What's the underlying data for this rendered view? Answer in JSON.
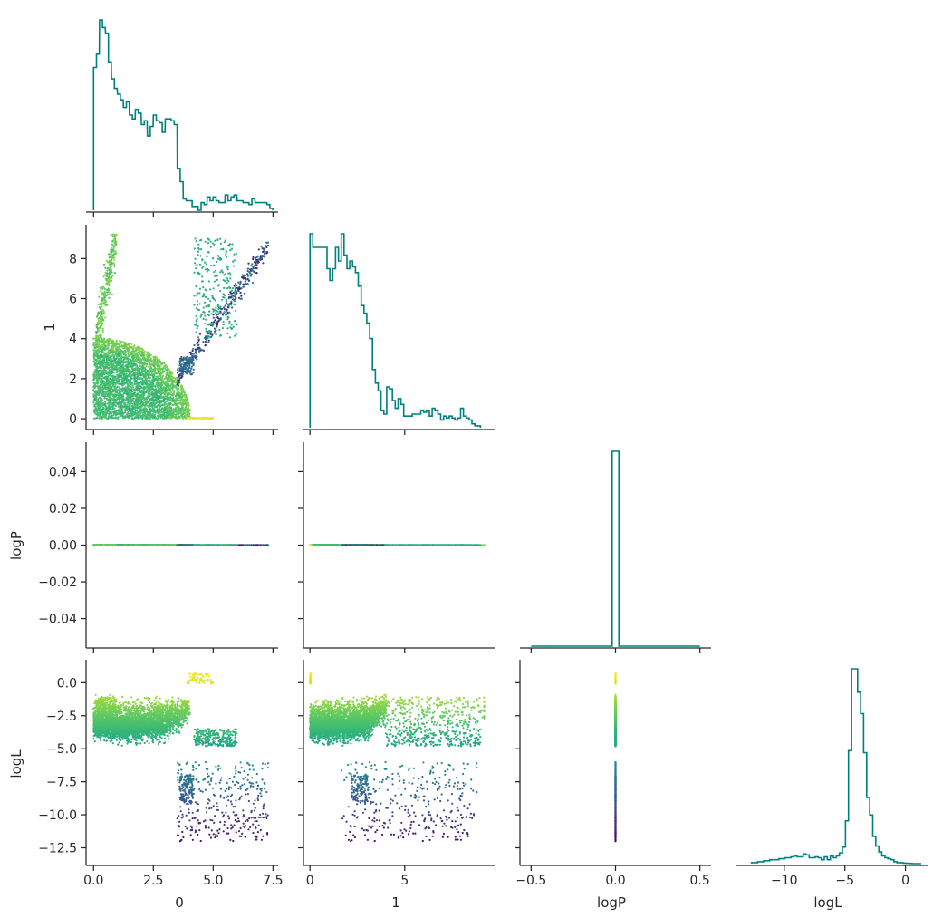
{
  "chart_data": {
    "type": "scatter",
    "grid": false,
    "variables": [
      "0",
      "1",
      "logP",
      "logL"
    ],
    "axis_labels": {
      "x_bottom": [
        "0",
        "1",
        "logP",
        "logL"
      ],
      "y_left": [
        "",
        "1",
        "logP",
        "logL"
      ]
    },
    "ticks": {
      "x0": {
        "values": [
          0,
          2.5,
          5,
          7.5
        ],
        "labels": [
          "0.0",
          "2.5",
          "5.0",
          "7.5"
        ],
        "lim": [
          -0.2,
          7.6
        ]
      },
      "x1": {
        "values": [
          0,
          5
        ],
        "labels": [
          "0",
          "5"
        ],
        "lim": [
          -0.2,
          9.6
        ]
      },
      "xlogP": {
        "values": [
          -0.5,
          0,
          0.5
        ],
        "labels": [
          "−0.5",
          "0.0",
          "0.5"
        ],
        "lim": [
          -0.55,
          0.55
        ]
      },
      "xlogL": {
        "values": [
          -10,
          -5,
          0
        ],
        "labels": [
          "−10",
          "−5",
          "0"
        ],
        "lim": [
          -13.8,
          1.6
        ]
      },
      "y1": {
        "values": [
          0,
          2,
          4,
          6,
          8
        ],
        "labels": [
          "0",
          "2",
          "4",
          "6",
          "8"
        ],
        "lim": [
          -0.45,
          9.6
        ]
      },
      "ylogP": {
        "values": [
          -0.04,
          -0.02,
          0,
          0.02,
          0.04
        ],
        "labels": [
          "−0.04",
          "−0.02",
          "0.00",
          "0.02",
          "0.04"
        ],
        "lim": [
          -0.055,
          0.055
        ]
      },
      "ylogL": {
        "values": [
          -12.5,
          -10,
          -7.5,
          -5,
          -2.5,
          0
        ],
        "labels": [
          "−12.5",
          "−10.0",
          "−7.5",
          "−5.0",
          "−2.5",
          "0.0"
        ],
        "lim": [
          -13.7,
          1.6
        ]
      }
    },
    "color_map": "viridis (points colored by logL)",
    "colors": {
      "hist": "#008080",
      "text": "#262626"
    },
    "histograms": {
      "0": {
        "x": [
          0.0,
          0.12,
          0.25,
          0.37,
          0.5,
          0.62,
          0.75,
          0.87,
          1.0,
          1.12,
          1.25,
          1.37,
          1.5,
          1.62,
          1.75,
          1.87,
          2.0,
          2.12,
          2.25,
          2.37,
          2.5,
          2.62,
          2.75,
          2.87,
          3.0,
          3.12,
          3.25,
          3.37,
          3.5,
          3.62,
          3.75,
          3.87,
          4.0,
          4.12,
          4.25,
          4.37,
          4.5,
          4.62,
          4.75,
          4.87,
          5.0,
          5.12,
          5.25,
          5.37,
          5.5,
          5.62,
          5.75,
          5.87,
          6.0,
          6.12,
          6.25,
          6.37,
          6.5,
          6.62,
          6.75,
          6.87,
          7.0,
          7.12,
          7.25,
          7.37
        ],
        "values": [
          0.75,
          0.82,
          1.0,
          0.96,
          0.93,
          0.78,
          0.69,
          0.64,
          0.61,
          0.58,
          0.54,
          0.57,
          0.5,
          0.48,
          0.53,
          0.51,
          0.45,
          0.47,
          0.39,
          0.44,
          0.5,
          0.47,
          0.46,
          0.41,
          0.48,
          0.48,
          0.47,
          0.45,
          0.22,
          0.15,
          0.06,
          0.05,
          0.05,
          0.02,
          0.02,
          0.0,
          0.04,
          0.03,
          0.07,
          0.05,
          0.07,
          0.05,
          0.04,
          0.04,
          0.08,
          0.05,
          0.07,
          0.08,
          0.05,
          0.05,
          0.04,
          0.04,
          0.03,
          0.06,
          0.04,
          0.04,
          0.04,
          0.04,
          0.03,
          0.01
        ]
      },
      "1": {
        "x": [
          0.0,
          0.15,
          0.3,
          0.45,
          0.6,
          0.75,
          0.9,
          1.05,
          1.2,
          1.35,
          1.5,
          1.65,
          1.8,
          1.95,
          2.1,
          2.25,
          2.4,
          2.55,
          2.7,
          2.85,
          3.0,
          3.15,
          3.3,
          3.45,
          3.6,
          3.75,
          3.9,
          4.05,
          4.2,
          4.35,
          4.5,
          4.65,
          4.8,
          4.95,
          5.1,
          5.25,
          5.4,
          5.55,
          5.7,
          5.85,
          6.0,
          6.15,
          6.3,
          6.45,
          6.6,
          6.75,
          6.9,
          7.05,
          7.2,
          7.35,
          7.5,
          7.65,
          7.8,
          7.95,
          8.1,
          8.25,
          8.4,
          8.55,
          8.7,
          8.85
        ],
        "values": [
          1.0,
          0.93,
          0.93,
          0.93,
          0.93,
          0.93,
          0.82,
          0.76,
          0.82,
          0.93,
          0.86,
          1.0,
          0.89,
          0.82,
          0.86,
          0.83,
          0.8,
          0.73,
          0.63,
          0.59,
          0.54,
          0.46,
          0.3,
          0.23,
          0.19,
          0.09,
          0.07,
          0.21,
          0.2,
          0.14,
          0.1,
          0.15,
          0.12,
          0.06,
          0.06,
          0.06,
          0.07,
          0.07,
          0.07,
          0.09,
          0.08,
          0.09,
          0.06,
          0.1,
          0.09,
          0.07,
          0.04,
          0.06,
          0.05,
          0.06,
          0.05,
          0.04,
          0.05,
          0.1,
          0.06,
          0.05,
          0.04,
          0.02,
          0.01,
          0.01
        ]
      },
      "logP": {
        "x": [
          -0.02,
          0.02
        ],
        "values": [
          1.0
        ],
        "range": [
          -0.5,
          0.5
        ]
      },
      "logL": {
        "x": [
          -12.7,
          -12.45,
          -12.2,
          -11.95,
          -11.7,
          -11.45,
          -11.2,
          -10.95,
          -10.7,
          -10.45,
          -10.2,
          -9.95,
          -9.7,
          -9.45,
          -9.2,
          -8.95,
          -8.7,
          -8.45,
          -8.2,
          -7.95,
          -7.7,
          -7.45,
          -7.2,
          -6.95,
          -6.7,
          -6.45,
          -6.2,
          -5.95,
          -5.7,
          -5.45,
          -5.2,
          -4.95,
          -4.7,
          -4.45,
          -4.2,
          -3.95,
          -3.7,
          -3.45,
          -3.2,
          -2.95,
          -2.7,
          -2.45,
          -2.2,
          -1.95,
          -1.7,
          -1.45,
          -1.2,
          -0.95,
          -0.7,
          -0.45,
          -0.2,
          0.05,
          0.3,
          0.55,
          0.8,
          1.05
        ],
        "values": [
          0.005,
          0.005,
          0.01,
          0.01,
          0.015,
          0.015,
          0.02,
          0.02,
          0.02,
          0.025,
          0.025,
          0.03,
          0.03,
          0.035,
          0.04,
          0.035,
          0.035,
          0.05,
          0.045,
          0.03,
          0.03,
          0.035,
          0.03,
          0.02,
          0.035,
          0.02,
          0.04,
          0.03,
          0.04,
          0.055,
          0.085,
          0.22,
          0.58,
          1.0,
          1.0,
          0.88,
          0.77,
          0.57,
          0.34,
          0.25,
          0.14,
          0.09,
          0.06,
          0.04,
          0.03,
          0.025,
          0.02,
          0.01,
          0.005,
          0.005,
          0.003,
          0.002,
          0.001,
          0.0,
          0.0,
          0.0
        ]
      }
    }
  }
}
